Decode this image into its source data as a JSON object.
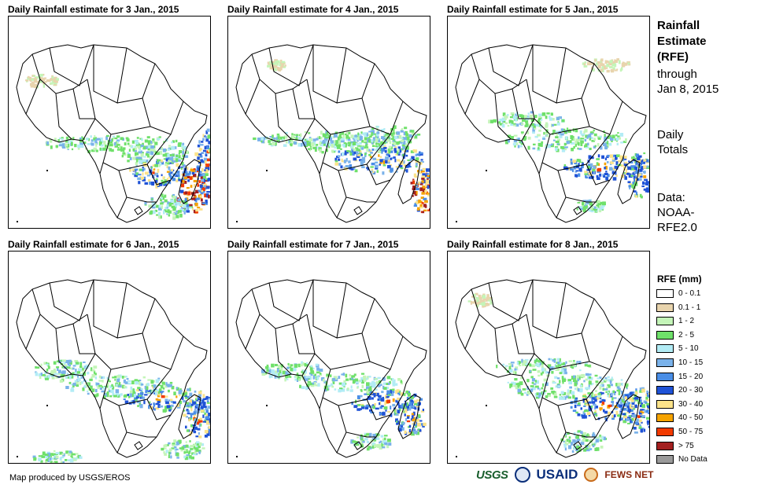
{
  "panels": [
    {
      "title": "Daily Rainfall estimate for 3 Jan., 2015"
    },
    {
      "title": "Daily Rainfall estimate for 4 Jan., 2015"
    },
    {
      "title": "Daily Rainfall estimate for 5 Jan., 2015"
    },
    {
      "title": "Daily Rainfall estimate for 6 Jan., 2015"
    },
    {
      "title": "Daily Rainfall estimate for 7 Jan., 2015"
    },
    {
      "title": "Daily Rainfall estimate for 8 Jan., 2015"
    }
  ],
  "side": {
    "heading_1": "Rainfall",
    "heading_2": "Estimate",
    "heading_3": "(RFE)",
    "through_1": "through",
    "through_2": "Jan 8, 2015",
    "daily_1": "Daily",
    "daily_2": "Totals",
    "data_1": "Data:",
    "data_2": "NOAA-",
    "data_3": "RFE2.0"
  },
  "legend": {
    "title": "RFE (mm)",
    "classes": [
      {
        "label": "0 - 0.1",
        "color": "#ffffff"
      },
      {
        "label": "0.1 - 1",
        "color": "#e8d4ad"
      },
      {
        "label": "1 - 2",
        "color": "#c4f5b8"
      },
      {
        "label": "2 - 5",
        "color": "#6fe06a"
      },
      {
        "label": "5 - 10",
        "color": "#b2ecf5"
      },
      {
        "label": "10 - 15",
        "color": "#7ab2ea"
      },
      {
        "label": "15 - 20",
        "color": "#4a8ee6"
      },
      {
        "label": "20 - 30",
        "color": "#1f52d6"
      },
      {
        "label": "30 - 40",
        "color": "#fce38a"
      },
      {
        "label": "40 - 50",
        "color": "#f5a300"
      },
      {
        "label": "50 - 75",
        "color": "#f23a00"
      },
      {
        "label": "> 75",
        "color": "#a31f1f"
      },
      {
        "label": "No Data",
        "color": "#9a9a9a"
      }
    ]
  },
  "footer": {
    "credit": "Map produced by USGS/EROS",
    "logo_usgs": "USGS",
    "logo_usaid": "USAID",
    "logo_fews": "FEWS NET"
  }
}
